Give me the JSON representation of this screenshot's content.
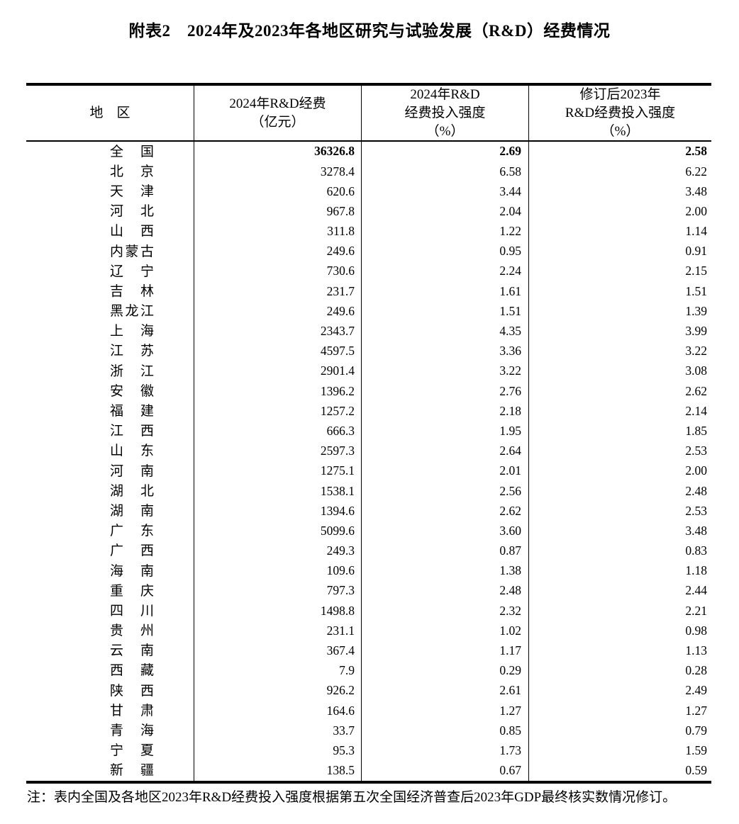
{
  "title": "附表2　2024年及2023年各地区研究与试验发展（R&D）经费情况",
  "table": {
    "columns": [
      {
        "label": "地　区"
      },
      {
        "label": "2024年R&D经费\n（亿元）"
      },
      {
        "label": "2024年R&D\n经费投入强度\n（%）"
      },
      {
        "label": "修订后2023年\nR&D经费投入强度\n（%）"
      }
    ],
    "rows": [
      {
        "region": "全国",
        "rd_expenditure": "36326.8",
        "intensity_2024": "2.69",
        "intensity_2023_revised": "2.58",
        "bold": true
      },
      {
        "region": "北京",
        "rd_expenditure": "3278.4",
        "intensity_2024": "6.58",
        "intensity_2023_revised": "6.22"
      },
      {
        "region": "天津",
        "rd_expenditure": "620.6",
        "intensity_2024": "3.44",
        "intensity_2023_revised": "3.48"
      },
      {
        "region": "河北",
        "rd_expenditure": "967.8",
        "intensity_2024": "2.04",
        "intensity_2023_revised": "2.00"
      },
      {
        "region": "山西",
        "rd_expenditure": "311.8",
        "intensity_2024": "1.22",
        "intensity_2023_revised": "1.14"
      },
      {
        "region": "内蒙古",
        "rd_expenditure": "249.6",
        "intensity_2024": "0.95",
        "intensity_2023_revised": "0.91"
      },
      {
        "region": "辽宁",
        "rd_expenditure": "730.6",
        "intensity_2024": "2.24",
        "intensity_2023_revised": "2.15"
      },
      {
        "region": "吉林",
        "rd_expenditure": "231.7",
        "intensity_2024": "1.61",
        "intensity_2023_revised": "1.51"
      },
      {
        "region": "黑龙江",
        "rd_expenditure": "249.6",
        "intensity_2024": "1.51",
        "intensity_2023_revised": "1.39"
      },
      {
        "region": "上海",
        "rd_expenditure": "2343.7",
        "intensity_2024": "4.35",
        "intensity_2023_revised": "3.99"
      },
      {
        "region": "江苏",
        "rd_expenditure": "4597.5",
        "intensity_2024": "3.36",
        "intensity_2023_revised": "3.22"
      },
      {
        "region": "浙江",
        "rd_expenditure": "2901.4",
        "intensity_2024": "3.22",
        "intensity_2023_revised": "3.08"
      },
      {
        "region": "安徽",
        "rd_expenditure": "1396.2",
        "intensity_2024": "2.76",
        "intensity_2023_revised": "2.62"
      },
      {
        "region": "福建",
        "rd_expenditure": "1257.2",
        "intensity_2024": "2.18",
        "intensity_2023_revised": "2.14"
      },
      {
        "region": "江西",
        "rd_expenditure": "666.3",
        "intensity_2024": "1.95",
        "intensity_2023_revised": "1.85"
      },
      {
        "region": "山东",
        "rd_expenditure": "2597.3",
        "intensity_2024": "2.64",
        "intensity_2023_revised": "2.53"
      },
      {
        "region": "河南",
        "rd_expenditure": "1275.1",
        "intensity_2024": "2.01",
        "intensity_2023_revised": "2.00"
      },
      {
        "region": "湖北",
        "rd_expenditure": "1538.1",
        "intensity_2024": "2.56",
        "intensity_2023_revised": "2.48"
      },
      {
        "region": "湖南",
        "rd_expenditure": "1394.6",
        "intensity_2024": "2.62",
        "intensity_2023_revised": "2.53"
      },
      {
        "region": "广东",
        "rd_expenditure": "5099.6",
        "intensity_2024": "3.60",
        "intensity_2023_revised": "3.48"
      },
      {
        "region": "广西",
        "rd_expenditure": "249.3",
        "intensity_2024": "0.87",
        "intensity_2023_revised": "0.83"
      },
      {
        "region": "海南",
        "rd_expenditure": "109.6",
        "intensity_2024": "1.38",
        "intensity_2023_revised": "1.18"
      },
      {
        "region": "重庆",
        "rd_expenditure": "797.3",
        "intensity_2024": "2.48",
        "intensity_2023_revised": "2.44"
      },
      {
        "region": "四川",
        "rd_expenditure": "1498.8",
        "intensity_2024": "2.32",
        "intensity_2023_revised": "2.21"
      },
      {
        "region": "贵州",
        "rd_expenditure": "231.1",
        "intensity_2024": "1.02",
        "intensity_2023_revised": "0.98"
      },
      {
        "region": "云南",
        "rd_expenditure": "367.4",
        "intensity_2024": "1.17",
        "intensity_2023_revised": "1.13"
      },
      {
        "region": "西藏",
        "rd_expenditure": "7.9",
        "intensity_2024": "0.29",
        "intensity_2023_revised": "0.28"
      },
      {
        "region": "陕西",
        "rd_expenditure": "926.2",
        "intensity_2024": "2.61",
        "intensity_2023_revised": "2.49"
      },
      {
        "region": "甘肃",
        "rd_expenditure": "164.6",
        "intensity_2024": "1.27",
        "intensity_2023_revised": "1.27"
      },
      {
        "region": "青海",
        "rd_expenditure": "33.7",
        "intensity_2024": "0.85",
        "intensity_2023_revised": "0.79"
      },
      {
        "region": "宁夏",
        "rd_expenditure": "95.3",
        "intensity_2024": "1.73",
        "intensity_2023_revised": "1.59"
      },
      {
        "region": "新疆",
        "rd_expenditure": "138.5",
        "intensity_2024": "0.67",
        "intensity_2023_revised": "0.59"
      }
    ]
  },
  "note": "注：表内全国及各地区2023年R&D经费投入强度根据第五次全国经济普查后2023年GDP最终核实数情况修订。"
}
